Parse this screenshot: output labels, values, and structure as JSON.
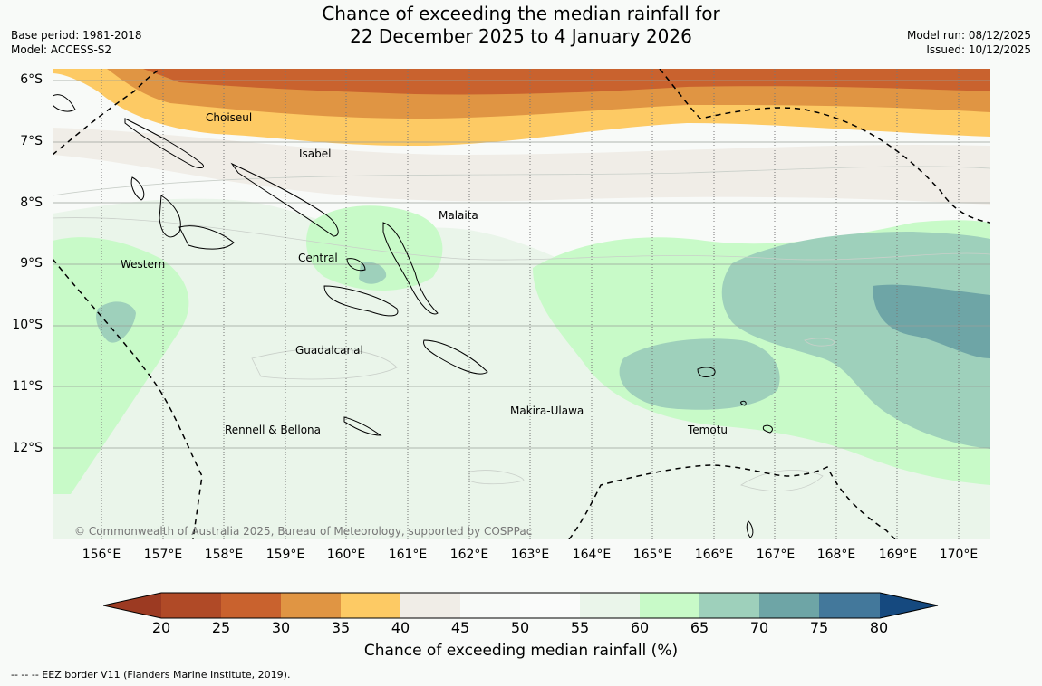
{
  "title": {
    "line1": "Chance of exceeding the median rainfall for",
    "line2": "22 December 2025 to 4 January 2026"
  },
  "meta": {
    "base_period": "Base period: 1981-2018",
    "model": "Model: ACCESS-S2",
    "model_run": "Model run: 08/12/2025",
    "issued": "Issued: 10/12/2025"
  },
  "map": {
    "lat_ticks": [
      "6°S",
      "7°S",
      "8°S",
      "9°S",
      "10°S",
      "11°S",
      "12°S"
    ],
    "lon_ticks": [
      "156°E",
      "157°E",
      "158°E",
      "159°E",
      "160°E",
      "161°E",
      "162°E",
      "163°E",
      "164°E",
      "165°E",
      "166°E",
      "167°E",
      "168°E",
      "169°E",
      "170°E"
    ],
    "regions": [
      "Choiseul",
      "Isabel",
      "Malaita",
      "Western",
      "Central",
      "Guadalcanal",
      "Rennell & Bellona",
      "Makira-Ulawa",
      "Temotu"
    ],
    "copyright": "© Commonwealth of Australia 2025, Bureau of Meteorology, supported by COSPPac",
    "overlay_icon": "eez-boundary-dashed-line"
  },
  "colorbar": {
    "ticks": [
      "20",
      "25",
      "30",
      "35",
      "40",
      "45",
      "50",
      "55",
      "60",
      "65",
      "70",
      "75",
      "80"
    ],
    "colors": [
      "#9c3a22",
      "#b04a27",
      "#c9622e",
      "#e09543",
      "#fdca64",
      "#f0ede7",
      "#f8faf8",
      "#fafbfa",
      "#eaf5ea",
      "#c8fac8",
      "#9ed0bb",
      "#6ea5a6",
      "#43789b",
      "#15497f"
    ],
    "label": "Chance of exceeding median rainfall (%)"
  },
  "footer": {
    "eez_note": "--  --  -- EEZ border V11 (Flanders Marine Institute, 2019)."
  }
}
